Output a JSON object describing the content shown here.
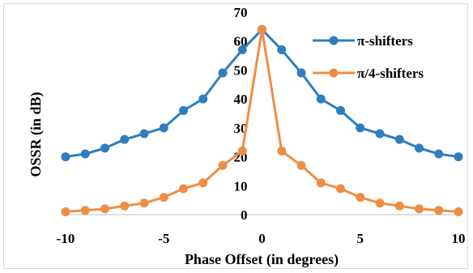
{
  "chart_data": {
    "type": "line",
    "title": "",
    "xlabel": "Phase Offset (in degrees)",
    "ylabel": "OSSR (in dB)",
    "xlim": [
      -10,
      10
    ],
    "ylim": [
      0,
      70
    ],
    "xticks": [
      -10,
      -5,
      0,
      5,
      10
    ],
    "yticks": [
      0,
      10,
      20,
      30,
      40,
      50,
      60,
      70
    ],
    "grid": false,
    "legend_position": "top-right",
    "series": [
      {
        "name": "π-shifters",
        "color": "#2e7ebf",
        "x": [
          -10,
          -9,
          -8,
          -7,
          -6,
          -5,
          -4,
          -3,
          -2,
          -1,
          0,
          1,
          2,
          3,
          4,
          5,
          6,
          7,
          8,
          9,
          10
        ],
        "y": [
          20,
          21,
          23,
          26,
          28,
          30,
          36,
          40,
          49,
          57,
          64,
          57,
          49,
          40,
          36,
          30,
          28,
          26,
          23,
          21,
          20
        ]
      },
      {
        "name": "π/4-shifters",
        "color": "#ed8e45",
        "x": [
          -10,
          -9,
          -8,
          -7,
          -6,
          -5,
          -4,
          -3,
          -2,
          -1,
          0,
          1,
          2,
          3,
          4,
          5,
          6,
          7,
          8,
          9,
          10
        ],
        "y": [
          1,
          1.5,
          2,
          3,
          4,
          6,
          9,
          11,
          17,
          22,
          64,
          22,
          17,
          11,
          9,
          6,
          4,
          3,
          2,
          1.5,
          1
        ]
      }
    ]
  }
}
